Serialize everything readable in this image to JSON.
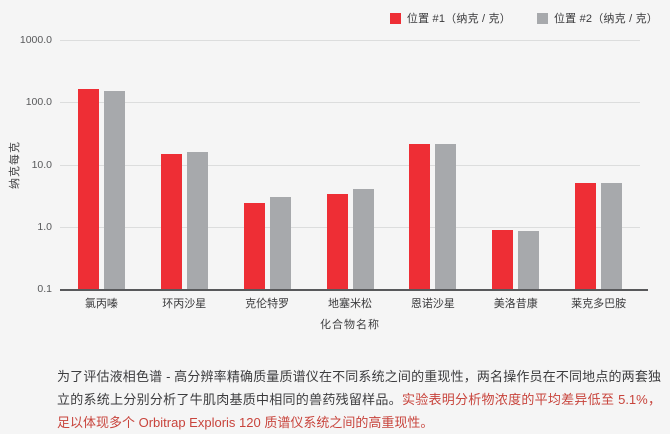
{
  "colors": {
    "background": "#f5f5f5",
    "bar_red": "#ee2e35",
    "bar_gray": "#a7a9ac",
    "gridline": "#dcdddd",
    "axis_line": "#58595b",
    "text_dark": "#3a3a3c",
    "caption_red": "#c8443c"
  },
  "chart_data": {
    "type": "bar",
    "scale": "log",
    "title": "",
    "xlabel": "化合物名称",
    "ylabel": "纳克每克",
    "ylim": [
      0.1,
      1000
    ],
    "ytick_labels": [
      "1000.0",
      "100.0",
      "10.0",
      "1.0",
      "0.1"
    ],
    "grid": true,
    "legend_position": "top-right",
    "categories": [
      "氯丙嗪",
      "环丙沙星",
      "克伦特罗",
      "地塞米松",
      "恩诺沙星",
      "美洛昔康",
      "莱克多巴胺"
    ],
    "series": [
      {
        "name": "位置 #1（纳克 / 克）",
        "color": "#ee2e35",
        "values": [
          165,
          15,
          2.4,
          3.3,
          21,
          0.9,
          5.0
        ]
      },
      {
        "name": "位置 #2（纳克 / 克）",
        "color": "#a7a9ac",
        "values": [
          150,
          16,
          3.0,
          4.0,
          21,
          0.85,
          5.1
        ]
      }
    ]
  },
  "caption": {
    "part1": "为了评估液相色谱 - 高分辨率精确质量质谱仪在不同系统之间的重现性，两名操作员在不同地点的两套独立的系统上分别分析了牛肌肉基质中相同的兽药残留样品。",
    "part2": "实验表明分析物浓度的平均差异低至 5.1%，足以体现多个 Orbitrap Exploris 120 质谱仪系统之间的高重现性。"
  }
}
